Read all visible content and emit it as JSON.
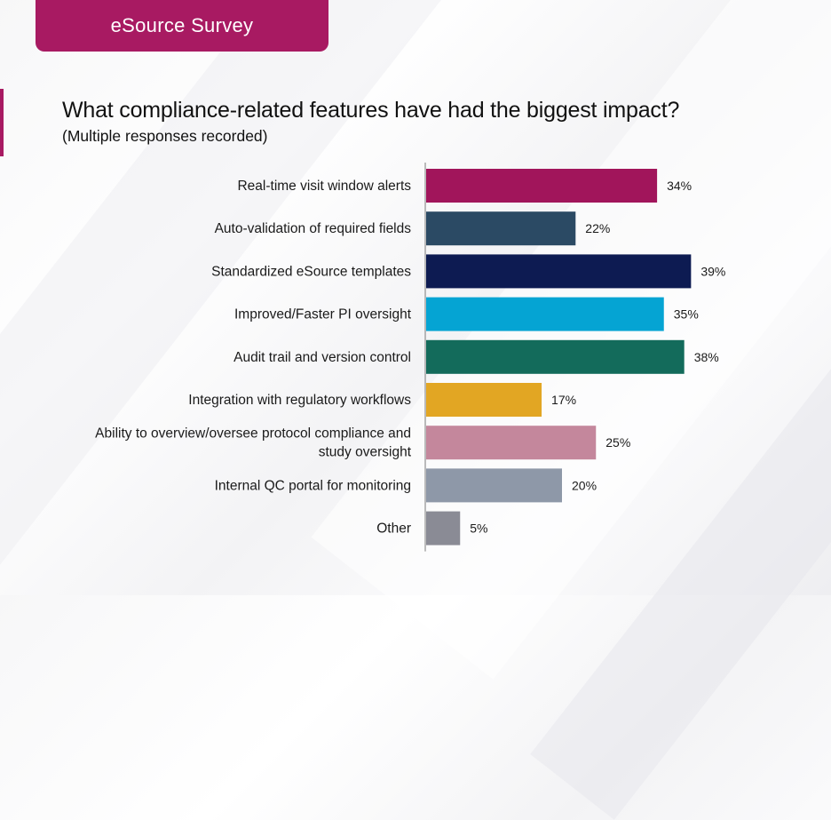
{
  "header": {
    "banner_title": "eSource Survey",
    "title": "What compliance-related features have had the biggest impact?",
    "subtitle": "(Multiple responses recorded)"
  },
  "chart_data": {
    "type": "bar",
    "orientation": "horizontal",
    "title": "What compliance-related features have had the biggest impact?",
    "subtitle": "(Multiple responses recorded)",
    "categories": [
      [
        "Real-time visit window alerts"
      ],
      [
        "Auto-validation of required fields"
      ],
      [
        "Standardized eSource templates"
      ],
      [
        "Improved/Faster PI oversight"
      ],
      [
        "Audit trail and version control"
      ],
      [
        "Integration with regulatory workflows"
      ],
      [
        "Ability to overview/oversee protocol compliance and",
        "study oversight"
      ],
      [
        "Internal QC portal for monitoring"
      ],
      [
        "Other"
      ]
    ],
    "values": [
      34,
      22,
      39,
      35,
      38,
      17,
      25,
      20,
      5
    ],
    "value_labels": [
      "34%",
      "22%",
      "39%",
      "35%",
      "38%",
      "17%",
      "25%",
      "20%",
      "5%"
    ],
    "colors": [
      "#a1155b",
      "#2b4a64",
      "#0d1b52",
      "#05a4d3",
      "#136b5b",
      "#e2a623",
      "#c4879c",
      "#8e98a8",
      "#8a8b95"
    ],
    "xlim": [
      0,
      40
    ],
    "xlabel": "",
    "ylabel": "",
    "grid": false,
    "legend": "none"
  }
}
